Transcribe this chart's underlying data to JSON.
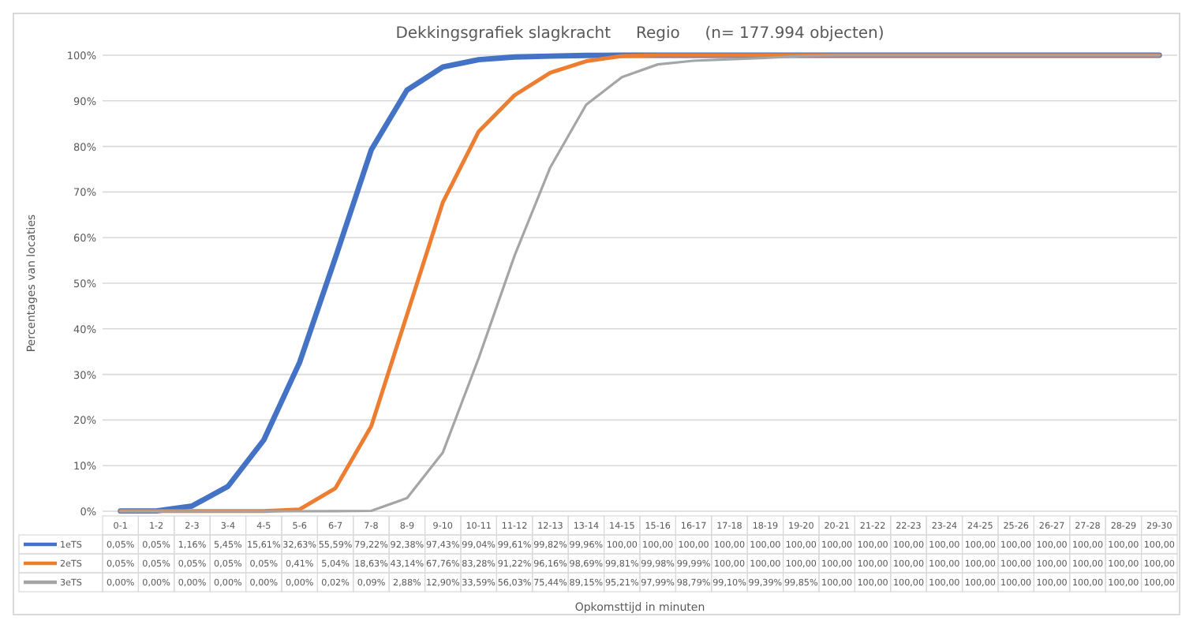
{
  "chart_data": {
    "type": "line",
    "title": "Dekkingsgrafiek slagkracht     Regio     (n= 177.994 objecten)",
    "annotations": [
      "Opkomsttijd in minuten"
    ],
    "ylabel": "Percentages van locaties",
    "categories": [
      "0-1",
      "1-2",
      "2-3",
      "3-4",
      "4-5",
      "5-6",
      "6-7",
      "7-8",
      "8-9",
      "9-10",
      "10-11",
      "11-12",
      "12-13",
      "13-14",
      "14-15",
      "15-16",
      "16-17",
      "17-18",
      "18-19",
      "19-20",
      "20-21",
      "21-22",
      "22-23",
      "23-24",
      "24-25",
      "25-26",
      "26-27",
      "27-28",
      "28-29",
      "29-30"
    ],
    "ylim": [
      0,
      100
    ],
    "yticks": [
      {
        "value": 0,
        "label": "0%"
      },
      {
        "value": 10,
        "label": "10%"
      },
      {
        "value": 20,
        "label": "20%"
      },
      {
        "value": 30,
        "label": "30%"
      },
      {
        "value": 40,
        "label": "40%"
      },
      {
        "value": 50,
        "label": "50%"
      },
      {
        "value": 60,
        "label": "60%"
      },
      {
        "value": 70,
        "label": "70%"
      },
      {
        "value": 80,
        "label": "80%"
      },
      {
        "value": 90,
        "label": "90%"
      },
      {
        "value": 100,
        "label": "100%"
      }
    ],
    "grid": "y",
    "legend": "bottom",
    "marker": "none",
    "series": [
      {
        "name": "1eTS",
        "color": "#4472c4",
        "values": [
          0.05,
          0.05,
          1.16,
          5.45,
          15.61,
          32.63,
          55.59,
          79.22,
          92.38,
          97.43,
          99.04,
          99.61,
          99.82,
          99.96,
          100,
          100,
          100,
          100,
          100,
          100,
          100,
          100,
          100,
          100,
          100,
          100,
          100,
          100,
          100,
          100
        ],
        "value_labels": [
          "0,05%",
          "0,05%",
          "1,16%",
          "5,45%",
          "15,61%",
          "32,63%",
          "55,59%",
          "79,22%",
          "92,38%",
          "97,43%",
          "99,04%",
          "99,61%",
          "99,82%",
          "99,96%",
          "100,00",
          "100,00",
          "100,00",
          "100,00",
          "100,00",
          "100,00",
          "100,00",
          "100,00",
          "100,00",
          "100,00",
          "100,00",
          "100,00",
          "100,00",
          "100,00",
          "100,00",
          "100,00"
        ]
      },
      {
        "name": "2eTS",
        "color": "#ed7d31",
        "values": [
          0.05,
          0.05,
          0.05,
          0.05,
          0.05,
          0.41,
          5.04,
          18.63,
          43.14,
          67.76,
          83.28,
          91.22,
          96.16,
          98.69,
          99.81,
          99.98,
          99.99,
          100,
          100,
          100,
          100,
          100,
          100,
          100,
          100,
          100,
          100,
          100,
          100,
          100
        ],
        "value_labels": [
          "0,05%",
          "0,05%",
          "0,05%",
          "0,05%",
          "0,05%",
          "0,41%",
          "5,04%",
          "18,63%",
          "43,14%",
          "67,76%",
          "83,28%",
          "91,22%",
          "96,16%",
          "98,69%",
          "99,81%",
          "99,98%",
          "99,99%",
          "100,00",
          "100,00",
          "100,00",
          "100,00",
          "100,00",
          "100,00",
          "100,00",
          "100,00",
          "100,00",
          "100,00",
          "100,00",
          "100,00",
          "100,00"
        ]
      },
      {
        "name": "3eTS",
        "color": "#a5a5a5",
        "values": [
          0,
          0,
          0,
          0,
          0,
          0,
          0.02,
          0.09,
          2.88,
          12.9,
          33.59,
          56.03,
          75.44,
          89.15,
          95.21,
          97.99,
          98.79,
          99.1,
          99.39,
          99.85,
          100,
          100,
          100,
          100,
          100,
          100,
          100,
          100,
          100,
          100
        ],
        "value_labels": [
          "0,00%",
          "0,00%",
          "0,00%",
          "0,00%",
          "0,00%",
          "0,00%",
          "0,02%",
          "0,09%",
          "2,88%",
          "12,90%",
          "33,59%",
          "56,03%",
          "75,44%",
          "89,15%",
          "95,21%",
          "97,99%",
          "98,79%",
          "99,10%",
          "99,39%",
          "99,85%",
          "100,00",
          "100,00",
          "100,00",
          "100,00",
          "100,00",
          "100,00",
          "100,00",
          "100,00",
          "100,00",
          "100,00"
        ]
      }
    ]
  }
}
